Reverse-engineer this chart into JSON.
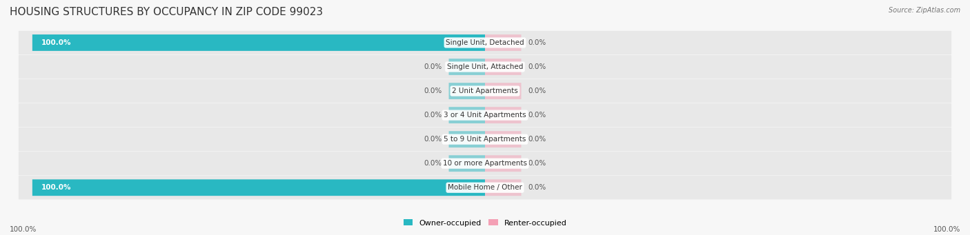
{
  "title": "HOUSING STRUCTURES BY OCCUPANCY IN ZIP CODE 99023",
  "source": "Source: ZipAtlas.com",
  "categories": [
    "Single Unit, Detached",
    "Single Unit, Attached",
    "2 Unit Apartments",
    "3 or 4 Unit Apartments",
    "5 to 9 Unit Apartments",
    "10 or more Apartments",
    "Mobile Home / Other"
  ],
  "owner_pct": [
    100.0,
    0.0,
    0.0,
    0.0,
    0.0,
    0.0,
    100.0
  ],
  "renter_pct": [
    0.0,
    0.0,
    0.0,
    0.0,
    0.0,
    0.0,
    0.0
  ],
  "owner_color": "#29b8c2",
  "renter_color": "#f4a0b5",
  "row_bg_even": "#ececec",
  "row_bg_odd": "#e4e4e4",
  "title_fontsize": 11,
  "label_fontsize": 7.5,
  "cat_fontsize": 7.5,
  "bar_height": 0.68,
  "axis_label_left": "100.0%",
  "axis_label_right": "100.0%",
  "figsize": [
    14.06,
    3.41
  ],
  "dpi": 100,
  "left_pct_color": "#ffffff",
  "zero_pct_color": "#555555"
}
